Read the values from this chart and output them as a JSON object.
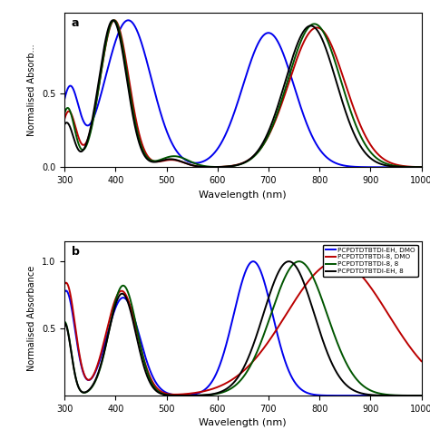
{
  "colors": {
    "blue": "#0000EE",
    "red": "#BB0000",
    "green": "#005500",
    "black": "#000000"
  },
  "legend_labels": [
    "PCPDTDTBTDI-EH, DMO",
    "PCPDTDTBTDI-8, DMO",
    "PCPDTDTBTDI-8, 8",
    "PCPDTDTBTDI-EH, 8"
  ],
  "ylabel_a": "Normalised Absorb...",
  "ylabel_b": "Normalised Absorbance",
  "xlabel": "Wavelength (nm)",
  "xlim": [
    300,
    1000
  ],
  "ylim_a": [
    0.0,
    1.05
  ],
  "ylim_b": [
    0.0,
    1.15
  ],
  "yticks_a": [
    0.0,
    0.5
  ],
  "yticks_b": [
    0.5,
    1.0
  ],
  "xticks": [
    300,
    400,
    500,
    600,
    700,
    800,
    900,
    1000
  ]
}
